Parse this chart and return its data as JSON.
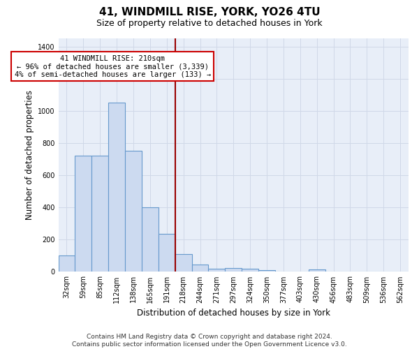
{
  "title": "41, WINDMILL RISE, YORK, YO26 4TU",
  "subtitle": "Size of property relative to detached houses in York",
  "xlabel": "Distribution of detached houses by size in York",
  "ylabel": "Number of detached properties",
  "footer": "Contains HM Land Registry data © Crown copyright and database right 2024.\nContains public sector information licensed under the Open Government Licence v3.0.",
  "bar_labels": [
    "32sqm",
    "59sqm",
    "85sqm",
    "112sqm",
    "138sqm",
    "165sqm",
    "191sqm",
    "218sqm",
    "244sqm",
    "271sqm",
    "297sqm",
    "324sqm",
    "350sqm",
    "377sqm",
    "403sqm",
    "430sqm",
    "456sqm",
    "483sqm",
    "509sqm",
    "536sqm",
    "562sqm"
  ],
  "bar_values": [
    100,
    720,
    720,
    1050,
    750,
    400,
    235,
    110,
    45,
    20,
    25,
    20,
    10,
    0,
    0,
    15,
    0,
    0,
    0,
    0,
    0
  ],
  "bar_color": "#ccdaf0",
  "bar_edge_color": "#6699cc",
  "bar_edge_width": 0.8,
  "grid_color": "#d0d8e8",
  "bg_color": "#e8eef8",
  "vline_x_index": 7,
  "vline_color": "#990000",
  "annotation_text_line1": "41 WINDMILL RISE: 210sqm",
  "annotation_text_line2": "← 96% of detached houses are smaller (3,339)",
  "annotation_text_line3": "4% of semi-detached houses are larger (133) →",
  "annotation_box_color": "#ffffff",
  "annotation_box_edge": "#cc0000",
  "ylim": [
    0,
    1450
  ],
  "yticks": [
    0,
    200,
    400,
    600,
    800,
    1000,
    1200,
    1400
  ],
  "title_fontsize": 11,
  "subtitle_fontsize": 9,
  "xlabel_fontsize": 8.5,
  "ylabel_fontsize": 8.5,
  "tick_fontsize": 7,
  "footer_fontsize": 6.5,
  "annotation_fontsize": 7.5
}
